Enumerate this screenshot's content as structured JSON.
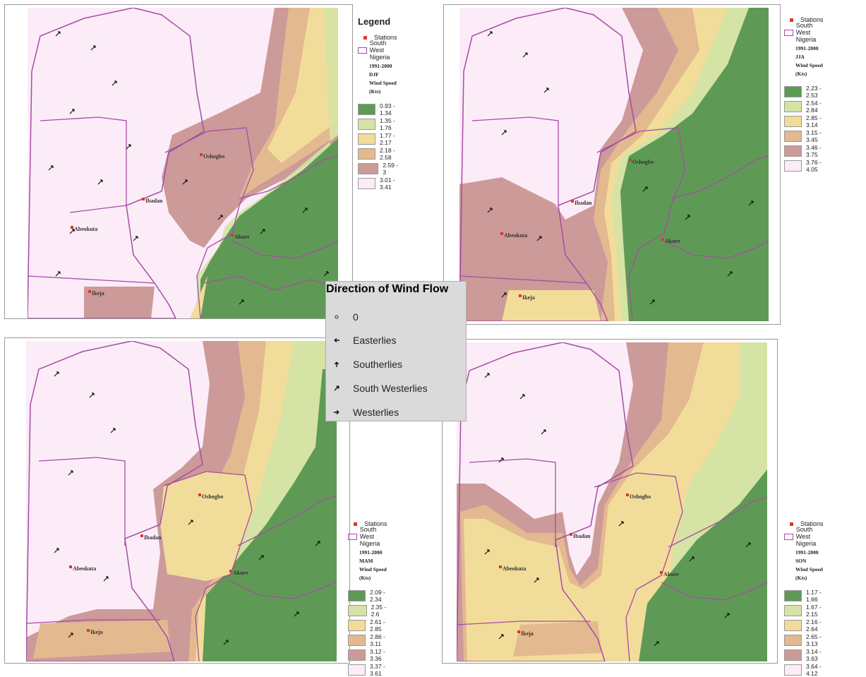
{
  "wind_legend": {
    "title": "Direction of Wind Flow",
    "items": [
      {
        "label": "0",
        "icon": "calm-circle-icon"
      },
      {
        "label": "Easterlies",
        "icon": "arrow-left-icon"
      },
      {
        "label": "Southerlies",
        "icon": "arrow-up-icon"
      },
      {
        "label": "South Westerlies",
        "icon": "arrow-up-right-icon"
      },
      {
        "label": "Westerlies",
        "icon": "arrow-right-icon"
      }
    ]
  },
  "common": {
    "stations_label": "Stations",
    "boundary_label": "South West Nigeria",
    "station_color": "#e8322a",
    "boundary_color": "#a64ca6",
    "class_colors": [
      "#5e9a55",
      "#d5e3a4",
      "#f2dc9a",
      "#e3b990",
      "#cc9a98",
      "#fbecf8"
    ]
  },
  "panels": [
    {
      "id": "djf",
      "legend_title": "Legend",
      "heading_1": "1991-2000 DJF",
      "heading_2": "Wind Speed (Kts)",
      "classes": [
        "0.93 - 1.34",
        "1.35 - 1.76",
        "1.77 - 2.17",
        "2.18 - 2.58",
        "2.59 - 3",
        "3.01 - 3.41"
      ],
      "towns": [
        "Oshogbo",
        "Ibadan",
        "Abeokuta",
        "Akure",
        "Ikeja"
      ]
    },
    {
      "id": "jja",
      "heading_1": "1991-2000 JJA",
      "heading_2": "Wind Speed (Kts)",
      "classes": [
        "2.23 - 2.53",
        "2.54 - 2.84",
        "2.85 - 3.14",
        "3.15 - 3.45",
        "3.46 - 3.75",
        "3.76 - 4.05"
      ],
      "towns": [
        "Oshogbo",
        "Ibadan",
        "Abeokuta",
        "Akure",
        "Ikeja"
      ]
    },
    {
      "id": "mam",
      "heading_1": "1991-2000 MAM",
      "heading_2": "Wind Speed (Kts)",
      "classes": [
        "2.09 - 2.34",
        "2.35 - 2.6",
        "2.61 - 2.85",
        "2.86 - 3.11",
        "3.12 - 3.36",
        "3.37 - 3.61"
      ],
      "towns": [
        "Oshogbo",
        "Ibadan",
        "Abeokuta",
        "Akure",
        "Ikeja"
      ]
    },
    {
      "id": "son",
      "heading_1": "1991-2000 SON",
      "heading_2": "Wind Speed (Kts)",
      "classes": [
        "1.17 - 1.66",
        "1.67 - 2.15",
        "2.16 - 2.64",
        "2.65 - 3.13",
        "3.14 - 3.63",
        "3.64 - 4.12"
      ],
      "towns": [
        "Oshogbo",
        "Ibadan",
        "Abeokuta",
        "Akure",
        "Ikeja"
      ]
    }
  ]
}
